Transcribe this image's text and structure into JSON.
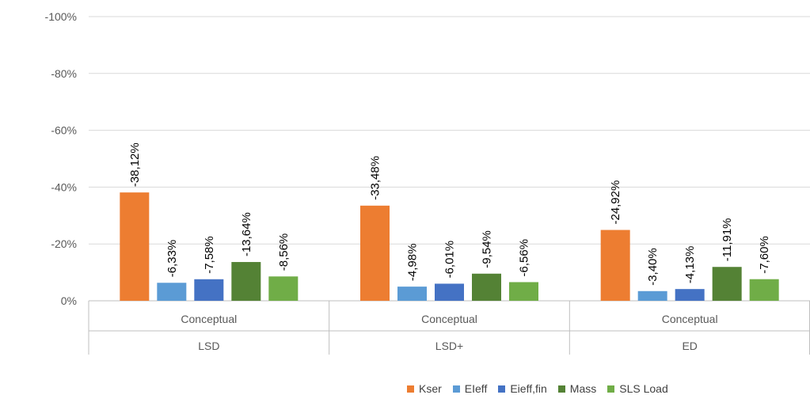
{
  "chart_data": {
    "type": "bar",
    "title": "",
    "xlabel": "",
    "ylabel": "",
    "ylim": [
      0,
      -100
    ],
    "y_ticks": [
      0,
      -20,
      -40,
      -60,
      -80,
      -100
    ],
    "y_tick_labels": [
      "0%",
      "-20%",
      "-40%",
      "-60%",
      "-80%",
      "-100%"
    ],
    "groups": [
      {
        "sub_label": "Conceptual",
        "label": "LSD"
      },
      {
        "sub_label": "Conceptual",
        "label": "LSD+"
      },
      {
        "sub_label": "Conceptual",
        "label": "ED"
      }
    ],
    "series": [
      {
        "name": "Kser",
        "color": "#ED7D31",
        "values": [
          -38.12,
          -33.48,
          -24.92
        ],
        "labels": [
          "-38,12%",
          "-33,48%",
          "-24,92%"
        ]
      },
      {
        "name": "EIeff",
        "color": "#5B9BD5",
        "values": [
          -6.33,
          -4.98,
          -3.4
        ],
        "labels": [
          "-6,33%",
          "-4,98%",
          "-3,40%"
        ]
      },
      {
        "name": "Eieff,fin",
        "color": "#4472C4",
        "values": [
          -7.58,
          -6.01,
          -4.13
        ],
        "labels": [
          "-7,58%",
          "-6,01%",
          "-4,13%"
        ]
      },
      {
        "name": "Mass",
        "color": "#548235",
        "values": [
          -13.64,
          -9.54,
          -11.91
        ],
        "labels": [
          "-13,64%",
          "-9,54%",
          "-11,91%"
        ]
      },
      {
        "name": "SLS Load",
        "color": "#70AD47",
        "values": [
          -8.56,
          -6.56,
          -7.6
        ],
        "labels": [
          "-8,56%",
          "-6,56%",
          "-7,60%"
        ]
      }
    ],
    "legend_position": "bottom-right",
    "grid": true
  }
}
